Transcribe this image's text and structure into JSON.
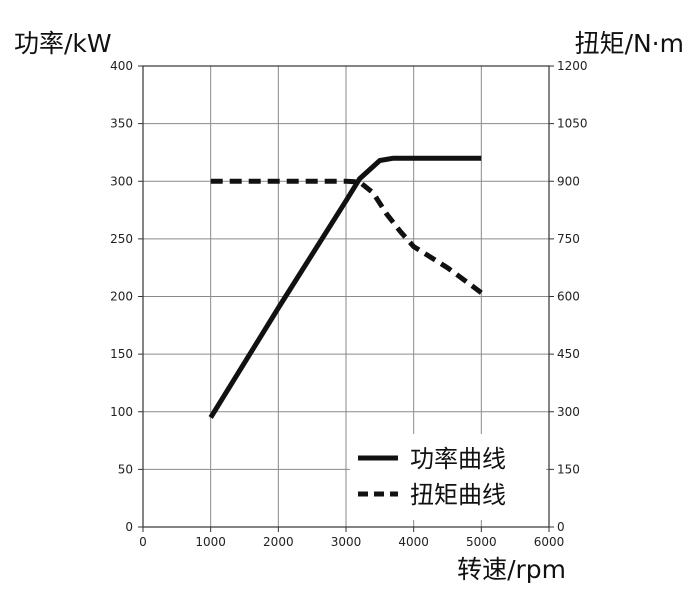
{
  "chart_data": {
    "type": "line",
    "ylabel_left": "功率/kW",
    "ylabel_right": "扭矩/N·m",
    "xlabel": "转速/rpm",
    "xlim": [
      0,
      6000
    ],
    "xticks": [
      0,
      1000,
      2000,
      3000,
      4000,
      5000,
      6000
    ],
    "ylim_left": [
      0,
      400
    ],
    "yticks_left": [
      0,
      50,
      100,
      150,
      200,
      250,
      300,
      350,
      400
    ],
    "ylim_right": [
      0,
      1200
    ],
    "yticks_right": [
      0,
      150,
      300,
      450,
      600,
      750,
      900,
      1050,
      1200
    ],
    "grid": true,
    "legend_position": "bottom-right",
    "series": [
      {
        "name": "功率曲线",
        "axis": "left",
        "style": "solid",
        "color": "#111111",
        "x": [
          1000,
          2000,
          3000,
          3200,
          3500,
          3700,
          4000,
          4500,
          5000
        ],
        "y": [
          95,
          190,
          283,
          302,
          318,
          320,
          320,
          320,
          320
        ]
      },
      {
        "name": "扭矩曲线",
        "axis": "right",
        "style": "dashed",
        "color": "#111111",
        "x": [
          1000,
          1500,
          2000,
          2500,
          3000,
          3200,
          3400,
          3600,
          3800,
          4000,
          4500,
          5000
        ],
        "y": [
          900,
          900,
          900,
          900,
          900,
          898,
          870,
          815,
          770,
          730,
          675,
          610
        ]
      }
    ]
  }
}
